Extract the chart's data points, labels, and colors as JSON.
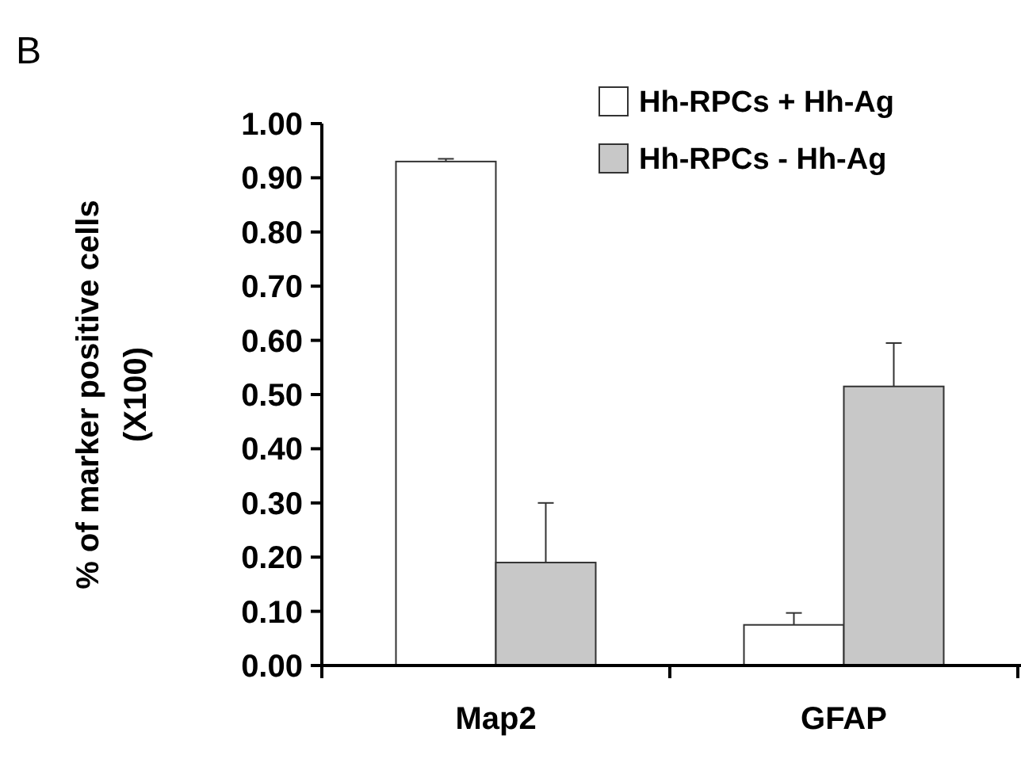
{
  "chart_data": {
    "type": "bar",
    "categories": [
      "Map2",
      "GFAP"
    ],
    "series": [
      {
        "name": "Hh-RPCs + Hh-Ag",
        "color": "#ffffff",
        "values": [
          0.93,
          0.075
        ],
        "errors": [
          [
            0.93,
            0.935
          ],
          [
            0.075,
            0.097
          ]
        ]
      },
      {
        "name": "Hh-RPCs - Hh-Ag",
        "color": "#c8c8c8",
        "values": [
          0.19,
          0.515
        ],
        "errors": [
          [
            0.19,
            0.3
          ],
          [
            0.515,
            0.595
          ]
        ]
      }
    ],
    "ylabel": "% of marker positive cells (X100)",
    "ylim": [
      0,
      1
    ],
    "yticks": [
      {
        "value": 0,
        "label": "0.00"
      },
      {
        "value": 0.1,
        "label": "0.10"
      },
      {
        "value": 0.2,
        "label": "0.20"
      },
      {
        "value": 0.3,
        "label": "0.30"
      },
      {
        "value": 0.4,
        "label": "0.40"
      },
      {
        "value": 0.5,
        "label": "0.50"
      },
      {
        "value": 0.6,
        "label": "0.60"
      },
      {
        "value": 0.7,
        "label": "0.70"
      },
      {
        "value": 0.8,
        "label": "0.80"
      },
      {
        "value": 0.9,
        "label": "0.90"
      },
      {
        "value": 1,
        "label": "1.00"
      }
    ],
    "legend": "top right",
    "annotations": [
      "B"
    ]
  }
}
